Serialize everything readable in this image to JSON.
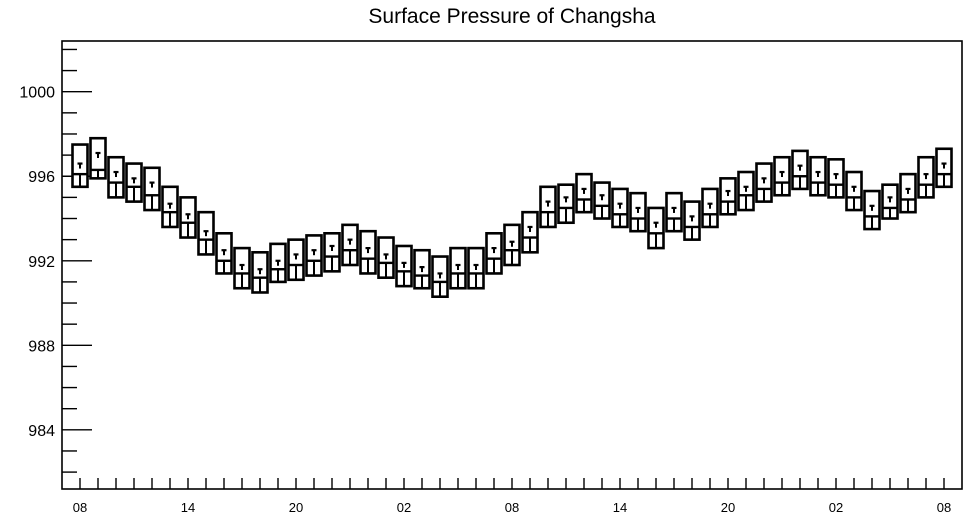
{
  "chart_data": {
    "type": "boxplot",
    "title": "Surface Pressure of Changsha",
    "xlabel": "",
    "ylabel": "",
    "ylim": [
      981.2,
      1002.4
    ],
    "yticks": [
      "1000",
      "996",
      "992",
      "988",
      "984"
    ],
    "ytick_values": [
      1000,
      996,
      992,
      988,
      984
    ],
    "xtick_labels": [
      "08",
      "14",
      "20",
      "02",
      "08",
      "14",
      "20",
      "02",
      "08"
    ],
    "xtick_positions": [
      0,
      6,
      12,
      18,
      24,
      30,
      36,
      42,
      48
    ],
    "x_range": [
      -1,
      49
    ],
    "grid": false,
    "boxes": [
      {
        "x": 0,
        "high": 997.5,
        "low": 995.5,
        "mid": 996.1,
        "median": 996.6
      },
      {
        "x": 1,
        "high": 997.8,
        "low": 995.9,
        "mid": 996.3,
        "median": 997.1
      },
      {
        "x": 2,
        "high": 996.9,
        "low": 995.0,
        "mid": 995.7,
        "median": 996.2
      },
      {
        "x": 3,
        "high": 996.6,
        "low": 994.8,
        "mid": 995.5,
        "median": 995.9
      },
      {
        "x": 4,
        "high": 996.4,
        "low": 994.4,
        "mid": 995.1,
        "median": 995.7
      },
      {
        "x": 5,
        "high": 995.5,
        "low": 993.6,
        "mid": 994.3,
        "median": 994.7
      },
      {
        "x": 6,
        "high": 995.0,
        "low": 993.1,
        "mid": 993.8,
        "median": 994.2
      },
      {
        "x": 7,
        "high": 994.3,
        "low": 992.3,
        "mid": 993.0,
        "median": 993.4
      },
      {
        "x": 8,
        "high": 993.3,
        "low": 991.4,
        "mid": 992.0,
        "median": 992.5
      },
      {
        "x": 9,
        "high": 992.6,
        "low": 990.7,
        "mid": 991.4,
        "median": 991.8
      },
      {
        "x": 10,
        "high": 992.4,
        "low": 990.5,
        "mid": 991.2,
        "median": 991.6
      },
      {
        "x": 11,
        "high": 992.8,
        "low": 991.0,
        "mid": 991.6,
        "median": 992.0
      },
      {
        "x": 12,
        "high": 993.0,
        "low": 991.1,
        "mid": 991.8,
        "median": 992.3
      },
      {
        "x": 13,
        "high": 993.2,
        "low": 991.3,
        "mid": 992.0,
        "median": 992.5
      },
      {
        "x": 14,
        "high": 993.3,
        "low": 991.5,
        "mid": 992.2,
        "median": 992.7
      },
      {
        "x": 15,
        "high": 993.7,
        "low": 991.8,
        "mid": 992.5,
        "median": 993.0
      },
      {
        "x": 16,
        "high": 993.4,
        "low": 991.4,
        "mid": 992.1,
        "median": 992.6
      },
      {
        "x": 17,
        "high": 993.1,
        "low": 991.2,
        "mid": 991.9,
        "median": 992.3
      },
      {
        "x": 18,
        "high": 992.7,
        "low": 990.8,
        "mid": 991.5,
        "median": 991.9
      },
      {
        "x": 19,
        "high": 992.5,
        "low": 990.7,
        "mid": 991.3,
        "median": 991.7
      },
      {
        "x": 20,
        "high": 992.2,
        "low": 990.3,
        "mid": 991.0,
        "median": 991.4
      },
      {
        "x": 21,
        "high": 992.6,
        "low": 990.7,
        "mid": 991.4,
        "median": 991.8
      },
      {
        "x": 22,
        "high": 992.6,
        "low": 990.7,
        "mid": 991.4,
        "median": 991.8
      },
      {
        "x": 23,
        "high": 993.3,
        "low": 991.4,
        "mid": 992.1,
        "median": 992.6
      },
      {
        "x": 24,
        "high": 993.7,
        "low": 991.8,
        "mid": 992.5,
        "median": 992.9
      },
      {
        "x": 25,
        "high": 994.3,
        "low": 992.4,
        "mid": 993.1,
        "median": 993.6
      },
      {
        "x": 26,
        "high": 995.5,
        "low": 993.6,
        "mid": 994.3,
        "median": 994.8
      },
      {
        "x": 27,
        "high": 995.6,
        "low": 993.8,
        "mid": 994.5,
        "median": 995.0
      },
      {
        "x": 28,
        "high": 996.1,
        "low": 994.3,
        "mid": 994.9,
        "median": 995.4
      },
      {
        "x": 29,
        "high": 995.7,
        "low": 994.0,
        "mid": 994.6,
        "median": 995.1
      },
      {
        "x": 30,
        "high": 995.4,
        "low": 993.6,
        "mid": 994.2,
        "median": 994.7
      },
      {
        "x": 31,
        "high": 995.2,
        "low": 993.4,
        "mid": 994.0,
        "median": 994.5
      },
      {
        "x": 32,
        "high": 994.5,
        "low": 992.6,
        "mid": 993.3,
        "median": 993.8
      },
      {
        "x": 33,
        "high": 995.2,
        "low": 993.4,
        "mid": 994.0,
        "median": 994.5
      },
      {
        "x": 34,
        "high": 994.8,
        "low": 993.0,
        "mid": 993.6,
        "median": 994.1
      },
      {
        "x": 35,
        "high": 995.4,
        "low": 993.6,
        "mid": 994.2,
        "median": 994.7
      },
      {
        "x": 36,
        "high": 995.9,
        "low": 994.2,
        "mid": 994.8,
        "median": 995.3
      },
      {
        "x": 37,
        "high": 996.2,
        "low": 994.4,
        "mid": 995.1,
        "median": 995.5
      },
      {
        "x": 38,
        "high": 996.6,
        "low": 994.8,
        "mid": 995.4,
        "median": 995.9
      },
      {
        "x": 39,
        "high": 996.9,
        "low": 995.1,
        "mid": 995.7,
        "median": 996.2
      },
      {
        "x": 40,
        "high": 997.2,
        "low": 995.4,
        "mid": 996.0,
        "median": 996.5
      },
      {
        "x": 41,
        "high": 996.9,
        "low": 995.1,
        "mid": 995.7,
        "median": 996.2
      },
      {
        "x": 42,
        "high": 996.8,
        "low": 995.0,
        "mid": 995.6,
        "median": 996.1
      },
      {
        "x": 43,
        "high": 996.2,
        "low": 994.4,
        "mid": 995.0,
        "median": 995.5
      },
      {
        "x": 44,
        "high": 995.3,
        "low": 993.5,
        "mid": 994.1,
        "median": 994.6
      },
      {
        "x": 45,
        "high": 995.6,
        "low": 994.0,
        "mid": 994.5,
        "median": 995.0
      },
      {
        "x": 46,
        "high": 996.1,
        "low": 994.3,
        "mid": 994.9,
        "median": 995.4
      },
      {
        "x": 47,
        "high": 996.9,
        "low": 995.0,
        "mid": 995.6,
        "median": 996.1
      },
      {
        "x": 48,
        "high": 997.3,
        "low": 995.5,
        "mid": 996.1,
        "median": 996.6
      }
    ]
  }
}
